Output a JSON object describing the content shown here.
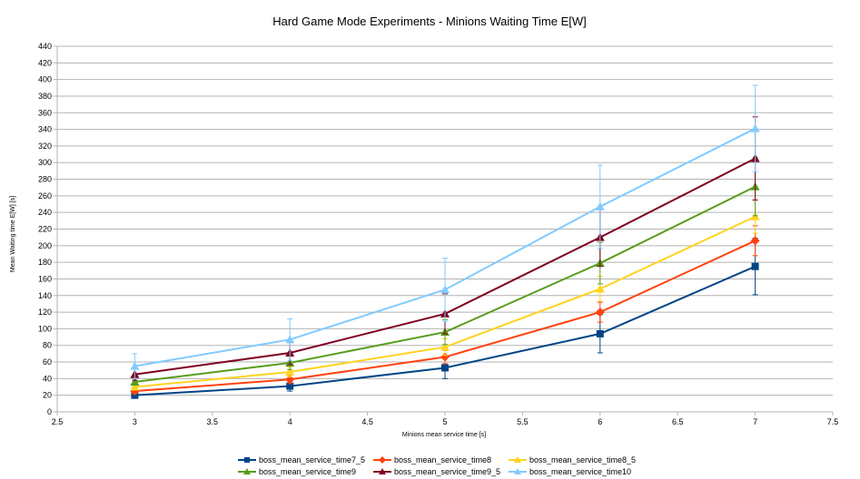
{
  "chart_data": {
    "type": "line",
    "title": "Hard Game Mode Experiments - Minions Waiting Time E[W]",
    "xlabel": "Minions mean service time [s]",
    "ylabel": "Mean Waiting time E[W] [s]",
    "xlim": [
      2.5,
      7.5
    ],
    "ylim": [
      0,
      440
    ],
    "x_ticks": [
      "2.5",
      "3",
      "3.5",
      "4",
      "4.5",
      "5",
      "5.5",
      "6",
      "6.5",
      "7",
      "7.5"
    ],
    "y_ticks": [
      "0",
      "20",
      "40",
      "60",
      "80",
      "100",
      "120",
      "140",
      "160",
      "180",
      "200",
      "220",
      "240",
      "260",
      "280",
      "300",
      "320",
      "340",
      "360",
      "380",
      "400",
      "420",
      "440"
    ],
    "grid": "horizontal",
    "legend_position": "bottom",
    "x": [
      3,
      4,
      5,
      6,
      7
    ],
    "series": [
      {
        "name": "boss_mean_service_time7_5",
        "color": "#004586",
        "marker": "square",
        "values": [
          20,
          31,
          53,
          94,
          175
        ],
        "err": [
          3,
          6,
          13,
          23,
          34
        ]
      },
      {
        "name": "boss_mean_service_time8",
        "color": "#ff420e",
        "marker": "diamond",
        "values": [
          25,
          39,
          66,
          120,
          206
        ],
        "err": [
          3,
          5,
          8,
          12,
          18
        ]
      },
      {
        "name": "boss_mean_service_time8_5",
        "color": "#ffd320",
        "marker": "triangle",
        "values": [
          30,
          48,
          78,
          148,
          235
        ],
        "err": [
          3,
          6,
          10,
          15,
          20
        ]
      },
      {
        "name": "boss_mean_service_time9",
        "color": "#579d1c",
        "marker": "triangle",
        "values": [
          36,
          59,
          96,
          179,
          271
        ],
        "err": [
          4,
          8,
          15,
          25,
          35
        ]
      },
      {
        "name": "boss_mean_service_time9_5",
        "color": "#7e0021",
        "marker": "triangle",
        "values": [
          45,
          71,
          118,
          210,
          305
        ],
        "err": [
          7,
          14,
          24,
          35,
          50
        ]
      },
      {
        "name": "boss_mean_service_time10",
        "color": "#83caff",
        "marker": "triangle",
        "values": [
          55,
          87,
          147,
          247,
          341
        ],
        "err": [
          15,
          25,
          38,
          50,
          52
        ]
      }
    ]
  }
}
